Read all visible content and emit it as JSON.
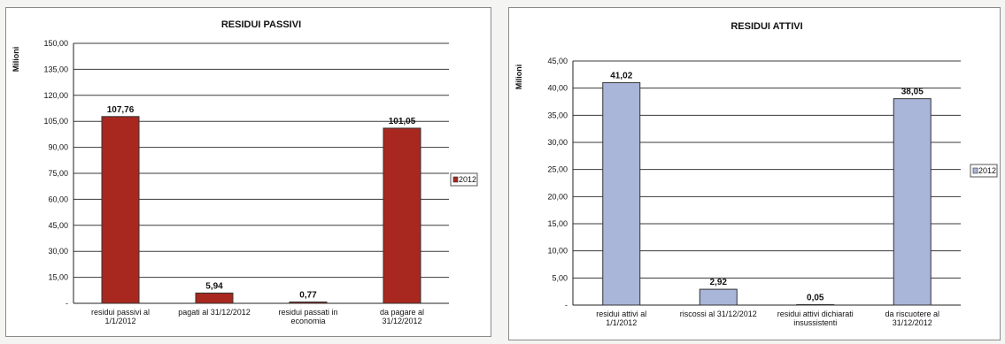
{
  "chart_data": [
    {
      "type": "bar",
      "title": "RESIDUI PASSIVI",
      "ylabel": "Milioni",
      "ylim": [
        0,
        150
      ],
      "yticks": [
        "150,00",
        "135,00",
        "120,00",
        "105,00",
        "90,00",
        "75,00",
        "60,00",
        "45,00",
        "30,00",
        "15,00",
        "-"
      ],
      "categories": [
        [
          "residui passivi al",
          "1/1/2012"
        ],
        [
          "pagati al 31/12/2012"
        ],
        [
          "residui passati in",
          "economia"
        ],
        [
          "da pagare al",
          "31/12/2012"
        ]
      ],
      "values": [
        107.76,
        5.94,
        0.77,
        101.05
      ],
      "data_labels": [
        "107,76",
        "5,94",
        "0,77",
        "101,05"
      ],
      "series_name": "2012",
      "color": "#a8281f",
      "grid": true,
      "legend": "right"
    },
    {
      "type": "bar",
      "title": "RESIDUI ATTIVI",
      "ylabel": "Milioni",
      "ylim": [
        0,
        45
      ],
      "yticks": [
        "45,00",
        "40,00",
        "35,00",
        "30,00",
        "25,00",
        "20,00",
        "15,00",
        "10,00",
        "5,00",
        "-"
      ],
      "categories": [
        [
          "residui attivi al",
          "1/1/2012"
        ],
        [
          "riscossi al 31/12/2012"
        ],
        [
          "residui attivi dichiarati",
          "insussistenti"
        ],
        [
          "da riscuotere al",
          "31/12/2012"
        ]
      ],
      "values": [
        41.02,
        2.92,
        0.05,
        38.05
      ],
      "data_labels": [
        "41,02",
        "2,92",
        "0,05",
        "38,05"
      ],
      "series_name": "2012",
      "color": "#a9b5d9",
      "grid": true,
      "legend": "right"
    }
  ]
}
